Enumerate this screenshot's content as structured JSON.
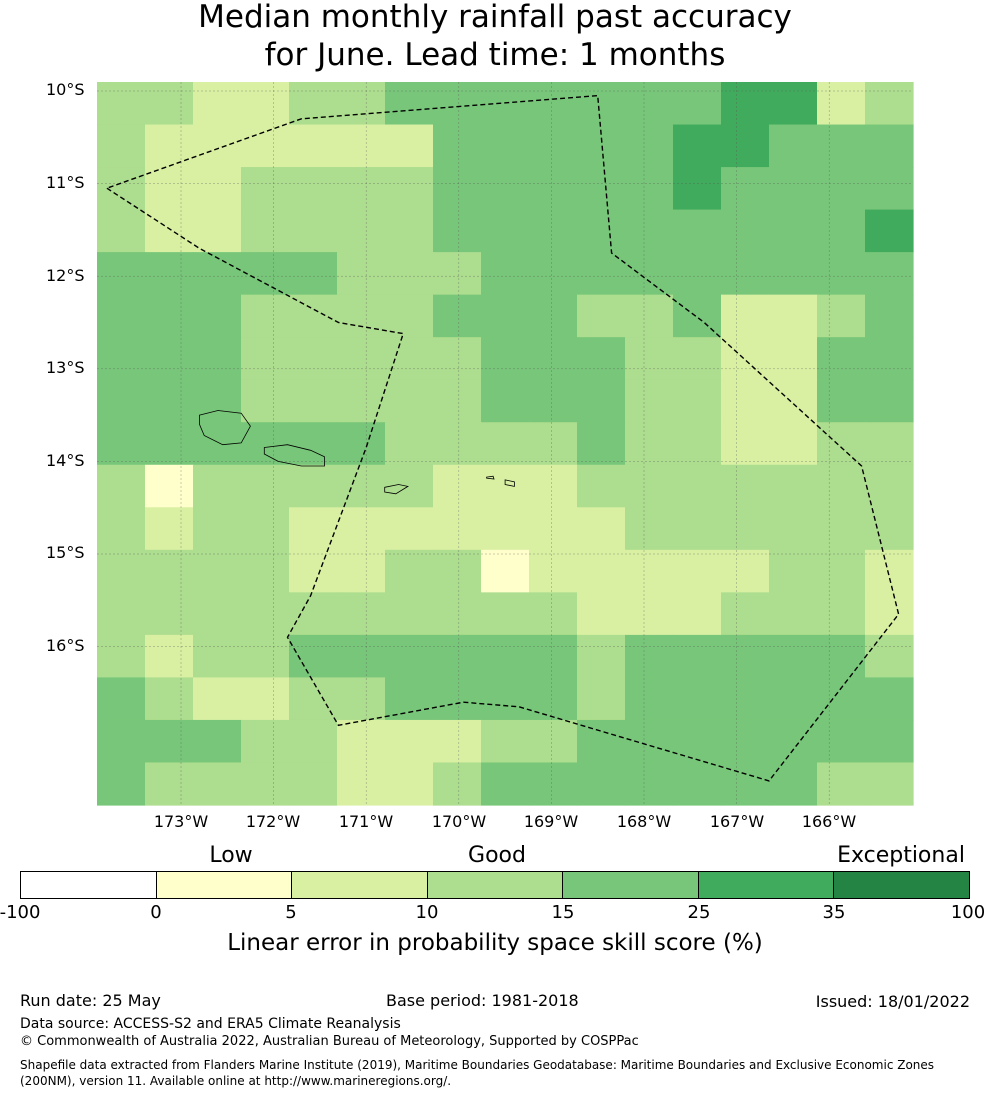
{
  "title_line1": "Median monthly rainfall past accuracy",
  "title_line2": "for June. Lead time: 1 months",
  "latitude_labels": [
    "10°S",
    "11°S",
    "12°S",
    "13°S",
    "14°S",
    "15°S",
    "16°S"
  ],
  "longitude_labels": [
    "173°W",
    "172°W",
    "171°W",
    "170°W",
    "169°W",
    "168°W",
    "167°W",
    "166°W"
  ],
  "legend": {
    "categories": [
      "Low",
      "Good",
      "Exceptional"
    ],
    "ticks": [
      "-100",
      "0",
      "5",
      "10",
      "15",
      "25",
      "35",
      "100"
    ],
    "colors": [
      "#ffffff",
      "#ffffcc",
      "#d9f0a3",
      "#addd8e",
      "#78c679",
      "#41ab5d",
      "#238443"
    ],
    "title": "Linear error in probability space skill score (%)"
  },
  "grid": {
    "rows": [
      [
        3,
        3,
        2,
        2,
        3,
        3,
        4,
        4,
        4,
        4,
        4,
        4,
        4,
        5,
        5,
        2,
        3
      ],
      [
        3,
        2,
        2,
        2,
        2,
        2,
        2,
        4,
        4,
        4,
        4,
        4,
        5,
        5,
        4,
        4,
        4
      ],
      [
        3,
        2,
        2,
        3,
        3,
        3,
        3,
        4,
        4,
        4,
        4,
        4,
        5,
        4,
        4,
        4,
        4
      ],
      [
        3,
        2,
        2,
        3,
        3,
        3,
        3,
        4,
        4,
        4,
        4,
        4,
        4,
        4,
        4,
        4,
        5
      ],
      [
        4,
        4,
        4,
        4,
        4,
        3,
        3,
        3,
        4,
        4,
        4,
        4,
        4,
        4,
        4,
        4,
        4
      ],
      [
        4,
        4,
        4,
        3,
        3,
        3,
        3,
        4,
        4,
        4,
        3,
        3,
        4,
        2,
        2,
        3,
        4
      ],
      [
        4,
        4,
        4,
        3,
        3,
        3,
        3,
        3,
        4,
        4,
        4,
        3,
        3,
        2,
        2,
        4,
        4
      ],
      [
        4,
        4,
        4,
        3,
        3,
        3,
        3,
        3,
        4,
        4,
        4,
        3,
        3,
        2,
        2,
        4,
        4
      ],
      [
        4,
        4,
        4,
        4,
        4,
        4,
        3,
        3,
        3,
        3,
        4,
        3,
        3,
        2,
        2,
        3,
        3
      ],
      [
        3,
        1,
        3,
        3,
        3,
        3,
        3,
        2,
        2,
        2,
        3,
        3,
        3,
        3,
        3,
        3,
        3
      ],
      [
        3,
        2,
        3,
        3,
        2,
        2,
        2,
        2,
        2,
        2,
        2,
        3,
        3,
        3,
        3,
        3,
        3
      ],
      [
        3,
        3,
        3,
        3,
        2,
        2,
        3,
        3,
        1,
        2,
        2,
        2,
        2,
        2,
        3,
        3,
        2
      ],
      [
        3,
        3,
        3,
        3,
        3,
        3,
        3,
        3,
        3,
        3,
        2,
        2,
        2,
        3,
        3,
        3,
        2
      ],
      [
        3,
        2,
        3,
        3,
        4,
        4,
        4,
        4,
        4,
        4,
        3,
        4,
        4,
        4,
        4,
        4,
        3
      ],
      [
        4,
        3,
        2,
        2,
        3,
        3,
        4,
        4,
        4,
        4,
        3,
        4,
        4,
        4,
        4,
        4,
        4
      ],
      [
        4,
        4,
        4,
        3,
        3,
        2,
        2,
        2,
        3,
        3,
        4,
        4,
        4,
        4,
        4,
        4,
        4
      ],
      [
        4,
        3,
        3,
        3,
        3,
        2,
        2,
        3,
        4,
        4,
        4,
        4,
        4,
        4,
        4,
        3,
        3
      ]
    ]
  },
  "boundary": [
    [
      -173.8,
      -11.05
    ],
    [
      -172.8,
      -11.7
    ],
    [
      -171.3,
      -12.5
    ],
    [
      -170.6,
      -12.62
    ],
    [
      -171.0,
      -13.85
    ],
    [
      -171.6,
      -15.45
    ],
    [
      -171.85,
      -15.9
    ],
    [
      -171.3,
      -16.85
    ],
    [
      -169.95,
      -16.6
    ],
    [
      -169.35,
      -16.65
    ],
    [
      -166.65,
      -17.45
    ],
    [
      -165.25,
      -15.65
    ],
    [
      -165.65,
      -14.05
    ],
    [
      -167.35,
      -12.5
    ],
    [
      -167.95,
      -12.05
    ],
    [
      -168.35,
      -11.75
    ],
    [
      -168.5,
      -10.05
    ],
    [
      -171.7,
      -10.3
    ],
    [
      -173.8,
      -11.05
    ]
  ],
  "islands": [
    [
      [
        -172.8,
        -13.5
      ],
      [
        -172.6,
        -13.45
      ],
      [
        -172.35,
        -13.48
      ],
      [
        -172.25,
        -13.62
      ],
      [
        -172.35,
        -13.8
      ],
      [
        -172.55,
        -13.82
      ],
      [
        -172.75,
        -13.72
      ],
      [
        -172.8,
        -13.6
      ],
      [
        -172.8,
        -13.5
      ]
    ],
    [
      [
        -172.1,
        -13.85
      ],
      [
        -171.85,
        -13.82
      ],
      [
        -171.6,
        -13.88
      ],
      [
        -171.45,
        -13.95
      ],
      [
        -171.45,
        -14.05
      ],
      [
        -171.7,
        -14.05
      ],
      [
        -171.95,
        -14.0
      ],
      [
        -172.1,
        -13.92
      ],
      [
        -172.1,
        -13.85
      ]
    ],
    [
      [
        -170.8,
        -14.28
      ],
      [
        -170.65,
        -14.25
      ],
      [
        -170.55,
        -14.27
      ],
      [
        -170.68,
        -14.35
      ],
      [
        -170.8,
        -14.33
      ],
      [
        -170.8,
        -14.28
      ]
    ],
    [
      [
        -169.5,
        -14.2
      ],
      [
        -169.4,
        -14.22
      ],
      [
        -169.4,
        -14.27
      ],
      [
        -169.5,
        -14.25
      ],
      [
        -169.5,
        -14.2
      ]
    ],
    [
      [
        -169.7,
        -14.17
      ],
      [
        -169.63,
        -14.16
      ],
      [
        -169.62,
        -14.19
      ],
      [
        -169.7,
        -14.18
      ],
      [
        -169.7,
        -14.17
      ]
    ]
  ],
  "footer": {
    "run_date": "Run date: 25 May",
    "base_period": "Base period: 1981-2018",
    "issued": "Issued: 18/01/2022",
    "data_source": "Data source: ACCESS-S2 and ERA5 Climate Reanalysis",
    "copyright": "© Commonwealth of Australia 2022, Australian Bureau of Meteorology, Supported by COSPPac",
    "shapefile": "Shapefile data extracted from Flanders Marine Institute (2019), Maritime Boundaries Geodatabase: Maritime Boundaries and Exclusive Economic Zones (200NM), version 11. Available online at http://www.marineregions.org/."
  }
}
